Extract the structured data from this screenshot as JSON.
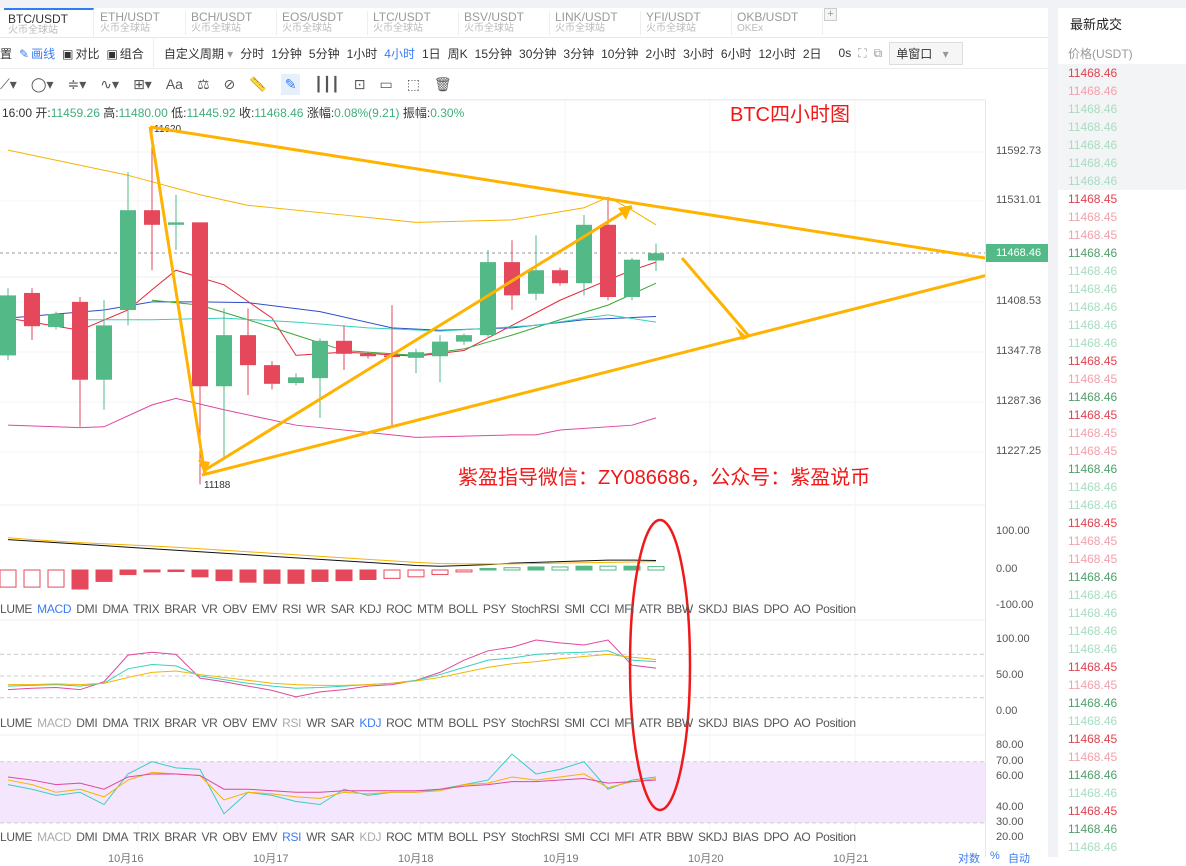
{
  "tabs": [
    {
      "pair": "BTC/USDT",
      "exchange": "火币全球站",
      "active": true
    },
    {
      "pair": "ETH/USDT",
      "exchange": "火币全球站"
    },
    {
      "pair": "BCH/USDT",
      "exchange": "火币全球站"
    },
    {
      "pair": "EOS/USDT",
      "exchange": "火币全球站"
    },
    {
      "pair": "LTC/USDT",
      "exchange": "火币全球站"
    },
    {
      "pair": "BSV/USDT",
      "exchange": "火币全球站"
    },
    {
      "pair": "LINK/USDT",
      "exchange": "火币全球站"
    },
    {
      "pair": "YFI/USDT",
      "exchange": "火币全球站"
    },
    {
      "pair": "OKB/USDT",
      "exchange": "OKEx"
    }
  ],
  "add_tab": "+",
  "toolbar": {
    "settings": "置",
    "draw": "画线",
    "compare": "对比",
    "combine": "组合",
    "custom_period": "自定义周期",
    "periods": [
      "分时",
      "1分钟",
      "5分钟",
      "1小时",
      "4小时",
      "1日",
      "周K",
      "15分钟",
      "30分钟",
      "3分钟",
      "10分钟",
      "2小时",
      "3小时",
      "6小时",
      "12小时",
      "2日"
    ],
    "active_period": "4小时",
    "countdown": "0s",
    "window_mode": "单窗口"
  },
  "draw_tools": {
    "text_tool": "Aa"
  },
  "info": {
    "time": "16:00",
    "open_label": "开:",
    "open": "11459.26",
    "high_label": "高:",
    "high": "11480.00",
    "low_label": "低:",
    "low": "11445.92",
    "close_label": "收:",
    "close": "11468.46",
    "change_label": "涨幅:",
    "change": "0.08%(9.21)",
    "amp_label": "振幅:",
    "amp": "0.30%"
  },
  "annotations": {
    "title": "BTC四小时图",
    "contact": "紫盈指导微信：ZY086686，公众号：紫盈说币",
    "high_mark": "11620",
    "low_mark": "11188"
  },
  "colors": {
    "up": "#53b987",
    "down": "#e5485a",
    "accent": "#3a7bf0",
    "annotation": "#ffb300"
  },
  "chart_data": [
    {
      "type": "candlestick",
      "price_ticks": [
        "11592.73",
        "11531.01",
        "11408.53",
        "11347.78",
        "11287.36",
        "11227.25"
      ],
      "current_price": "11468.46",
      "candles": [
        [
          11342,
          11425,
          11336,
          11416
        ],
        [
          11419,
          11425,
          11361,
          11378
        ],
        [
          11377,
          11396,
          11374,
          11393
        ],
        [
          11408,
          11414,
          11254,
          11312
        ],
        [
          11312,
          11410,
          11275,
          11379
        ],
        [
          11398,
          11568,
          11379,
          11521
        ],
        [
          11521,
          11622,
          11447,
          11503
        ],
        [
          11503,
          11540,
          11472,
          11506
        ],
        [
          11506,
          11506,
          11183,
          11304
        ],
        [
          11304,
          11400,
          11213,
          11367
        ],
        [
          11367,
          11400,
          11293,
          11330
        ],
        [
          11330,
          11335,
          11300,
          11307
        ],
        [
          11308,
          11320,
          11305,
          11315
        ],
        [
          11314,
          11363,
          11265,
          11360
        ],
        [
          11360,
          11379,
          11324,
          11344
        ],
        [
          11344,
          11346,
          11338,
          11341
        ],
        [
          11342,
          11404,
          11253,
          11340
        ],
        [
          11339,
          11350,
          11320,
          11346
        ],
        [
          11341,
          11367,
          11309,
          11359
        ],
        [
          11359,
          11369,
          11355,
          11367
        ],
        [
          11367,
          11472,
          11363,
          11457
        ],
        [
          11457,
          11484,
          11398,
          11416
        ],
        [
          11418,
          11490,
          11410,
          11447
        ],
        [
          11447,
          11450,
          11428,
          11431
        ],
        [
          11431,
          11515,
          11416,
          11503
        ],
        [
          11503,
          11536,
          11410,
          11414
        ],
        [
          11414,
          11462,
          11410,
          11460
        ],
        [
          11459,
          11480,
          11446,
          11468
        ]
      ],
      "overlays": [
        {
          "color": "#f5b400",
          "points": [
            [
              0,
              11595
            ],
            [
              5,
              11564
            ],
            [
              8,
              11540
            ],
            [
              10,
              11527
            ],
            [
              14,
              11515
            ],
            [
              17,
              11506
            ],
            [
              21,
              11509
            ],
            [
              24,
              11524
            ],
            [
              25,
              11537
            ],
            [
              26,
              11521
            ],
            [
              27,
              11503
            ]
          ]
        },
        {
          "color": "#e0479e",
          "points": [
            [
              0,
              11256
            ],
            [
              3,
              11253
            ],
            [
              4,
              11254
            ],
            [
              6,
              11281
            ],
            [
              7,
              11289
            ],
            [
              9,
              11275
            ],
            [
              12,
              11256
            ],
            [
              16,
              11244
            ],
            [
              17,
              11241
            ],
            [
              21,
              11244
            ],
            [
              22,
              11244
            ],
            [
              23,
              11250
            ],
            [
              26,
              11256
            ],
            [
              27,
              11265
            ]
          ]
        },
        {
          "color": "#2f4fc9",
          "points": [
            [
              0,
              11388
            ],
            [
              4,
              11398
            ],
            [
              6,
              11408
            ],
            [
              8,
              11408
            ],
            [
              10,
              11407
            ],
            [
              13,
              11396
            ],
            [
              16,
              11376
            ],
            [
              18,
              11373
            ],
            [
              21,
              11376
            ],
            [
              24,
              11386
            ],
            [
              27,
              11390
            ]
          ]
        },
        {
          "color": "#e3283c",
          "points": [
            [
              0,
              11388
            ],
            [
              3,
              11373
            ],
            [
              5,
              11398
            ],
            [
              6,
              11423
            ],
            [
              7,
              11447
            ],
            [
              9,
              11429
            ],
            [
              11,
              11388
            ],
            [
              12,
              11342
            ],
            [
              14,
              11346
            ],
            [
              17,
              11341
            ],
            [
              19,
              11348
            ],
            [
              21,
              11379
            ],
            [
              23,
              11410
            ],
            [
              25,
              11435
            ],
            [
              26,
              11447
            ],
            [
              27,
              11457
            ]
          ]
        },
        {
          "color": "#3aa835",
          "points": [
            [
              6,
              11410
            ],
            [
              8,
              11404
            ],
            [
              10,
              11386
            ],
            [
              12,
              11367
            ],
            [
              14,
              11348
            ],
            [
              17,
              11342
            ],
            [
              19,
              11350
            ],
            [
              21,
              11367
            ],
            [
              23,
              11386
            ],
            [
              25,
              11404
            ],
            [
              27,
              11431
            ]
          ]
        },
        {
          "color": "#38d0c0",
          "points": [
            [
              3,
              11386
            ],
            [
              6,
              11386
            ],
            [
              9,
              11388
            ],
            [
              12,
              11383
            ],
            [
              15,
              11376
            ],
            [
              18,
              11372
            ],
            [
              22,
              11379
            ],
            [
              25,
              11392
            ],
            [
              27,
              11383
            ]
          ]
        }
      ]
    },
    {
      "type": "bar",
      "name": "MACD",
      "ticks": [
        "100.00",
        "0.00",
        "-100.00"
      ],
      "histogram": [
        -45,
        -45,
        -45,
        -50,
        -30,
        -12,
        -5,
        -2,
        -18,
        -28,
        -32,
        -35,
        -35,
        -30,
        -28,
        -25,
        -22,
        -18,
        -12,
        -5,
        4,
        6,
        8,
        8,
        10,
        10,
        10,
        9
      ],
      "lines": [
        {
          "color": "#111",
          "values": [
            80,
            76,
            72,
            68,
            64,
            60,
            56,
            52,
            48,
            44,
            40,
            36,
            32,
            28,
            24,
            20,
            16,
            12,
            10,
            12,
            14,
            18,
            20,
            22,
            24,
            26,
            26,
            25
          ]
        },
        {
          "color": "#f5b400",
          "values": [
            85,
            80,
            76,
            72,
            69,
            66,
            63,
            60,
            56,
            52,
            48,
            44,
            40,
            36,
            32,
            28,
            24,
            20,
            17,
            16,
            16,
            16,
            17,
            18,
            19,
            20,
            21,
            22
          ]
        }
      ]
    },
    {
      "type": "line",
      "name": "KDJ",
      "ticks": [
        "100.00",
        "50.00",
        "0.00"
      ],
      "lines": [
        {
          "color": "#e0479e",
          "values": [
            31,
            33,
            34,
            31,
            42,
            79,
            83,
            80,
            47,
            42,
            36,
            30,
            21,
            28,
            31,
            36,
            38,
            44,
            55,
            72,
            85,
            90,
            100,
            96,
            93,
            100,
            65,
            61
          ]
        },
        {
          "color": "#38d0c0",
          "values": [
            36,
            37,
            38,
            36,
            40,
            60,
            66,
            64,
            50,
            45,
            40,
            36,
            33,
            34,
            36,
            38,
            40,
            44,
            52,
            62,
            72,
            75,
            80,
            82,
            83,
            85,
            72,
            70
          ]
        },
        {
          "color": "#f5b400",
          "values": [
            38,
            38,
            39,
            38,
            40,
            48,
            55,
            57,
            52,
            48,
            44,
            40,
            38,
            37,
            37,
            38,
            40,
            43,
            48,
            55,
            62,
            67,
            70,
            74,
            77,
            80,
            76,
            73
          ]
        }
      ]
    },
    {
      "type": "line",
      "name": "RSI",
      "ticks": [
        "80.00",
        "70.00",
        "60.00",
        "40.00",
        "30.00",
        "20.00"
      ],
      "lines": [
        {
          "color": "#38d0c0",
          "values": [
            55,
            52,
            48,
            50,
            42,
            62,
            70,
            66,
            65,
            36,
            50,
            48,
            44,
            42,
            52,
            48,
            50,
            50,
            52,
            55,
            58,
            75,
            62,
            65,
            70,
            52,
            58,
            60
          ]
        },
        {
          "color": "#f5b400",
          "values": [
            58,
            55,
            50,
            52,
            47,
            58,
            63,
            62,
            61,
            45,
            50,
            49,
            47,
            46,
            50,
            49,
            50,
            50,
            51,
            55,
            56,
            60,
            58,
            60,
            62,
            53,
            57,
            59
          ]
        },
        {
          "color": "#e0479e",
          "values": [
            60,
            58,
            55,
            56,
            52,
            60,
            62,
            62,
            61,
            52,
            52,
            51,
            50,
            50,
            51,
            51,
            51,
            51,
            52,
            54,
            55,
            57,
            57,
            58,
            59,
            56,
            57,
            58
          ]
        }
      ]
    }
  ],
  "indicators": [
    "LUME",
    "MACD",
    "DMI",
    "DMA",
    "TRIX",
    "BRAR",
    "VR",
    "OBV",
    "EMV",
    "RSI",
    "WR",
    "SAR",
    "KDJ",
    "ROC",
    "MTM",
    "BOLL",
    "PSY",
    "StochRSI",
    "SMI",
    "CCI",
    "MFI",
    "ATR",
    "BBW",
    "SKDJ",
    "BIAS",
    "DPO",
    "AO",
    "Position"
  ],
  "indicator_rows": [
    {
      "on": "MACD",
      "off": []
    },
    {
      "on": "KDJ",
      "off": [
        "MACD",
        "RSI"
      ]
    },
    {
      "on": "RSI",
      "off": [
        "MACD",
        "KDJ"
      ]
    }
  ],
  "dates": [
    "10月16",
    "10月17",
    "10月18",
    "10月19",
    "10月20",
    "10月21"
  ],
  "axis_options": [
    "对数",
    "%",
    "自动"
  ],
  "trades": {
    "title": "最新成交",
    "price_header": "价格(USDT)",
    "rows": [
      [
        "11468.46",
        "r"
      ],
      [
        "11468.46",
        "p"
      ],
      [
        "11468.46",
        "lg"
      ],
      [
        "11468.46",
        "lg"
      ],
      [
        "11468.46",
        "lg"
      ],
      [
        "11468.46",
        "lg"
      ],
      [
        "11468.46",
        "lg"
      ],
      [
        "11468.45",
        "r"
      ],
      [
        "11468.45",
        "p"
      ],
      [
        "11468.45",
        "p"
      ],
      [
        "11468.46",
        "g"
      ],
      [
        "11468.46",
        "lg"
      ],
      [
        "11468.46",
        "lg"
      ],
      [
        "11468.46",
        "lg"
      ],
      [
        "11468.46",
        "lg"
      ],
      [
        "11468.46",
        "lg"
      ],
      [
        "11468.45",
        "r"
      ],
      [
        "11468.45",
        "p"
      ],
      [
        "11468.46",
        "g"
      ],
      [
        "11468.45",
        "r"
      ],
      [
        "11468.45",
        "p"
      ],
      [
        "11468.45",
        "p"
      ],
      [
        "11468.46",
        "g"
      ],
      [
        "11468.46",
        "lg"
      ],
      [
        "11468.46",
        "lg"
      ],
      [
        "11468.45",
        "r"
      ],
      [
        "11468.45",
        "p"
      ],
      [
        "11468.45",
        "p"
      ],
      [
        "11468.46",
        "g"
      ],
      [
        "11468.46",
        "lg"
      ],
      [
        "11468.46",
        "lg"
      ],
      [
        "11468.46",
        "lg"
      ],
      [
        "11468.46",
        "lg"
      ],
      [
        "11468.45",
        "r"
      ],
      [
        "11468.45",
        "p"
      ],
      [
        "11468.46",
        "g"
      ],
      [
        "11468.46",
        "lg"
      ],
      [
        "11468.45",
        "r"
      ],
      [
        "11468.45",
        "p"
      ],
      [
        "11468.46",
        "g"
      ],
      [
        "11468.46",
        "lg"
      ],
      [
        "11468.45",
        "r"
      ],
      [
        "11468.46",
        "g"
      ],
      [
        "11468.46",
        "lg"
      ]
    ]
  }
}
